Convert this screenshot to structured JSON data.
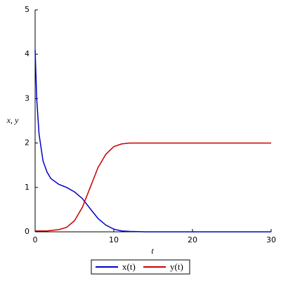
{
  "chart_data": {
    "type": "line",
    "x_label": "t",
    "y_label": "x, y",
    "x": [
      0,
      0.2,
      0.5,
      1,
      1.5,
      2,
      3,
      4,
      5,
      6,
      7,
      8,
      9,
      10,
      11,
      12,
      14,
      20,
      30
    ],
    "series": [
      {
        "name": "x(t)",
        "color": "#0000c8",
        "values": [
          4.1,
          3.0,
          2.2,
          1.6,
          1.35,
          1.2,
          1.07,
          1.0,
          0.9,
          0.75,
          0.52,
          0.3,
          0.15,
          0.06,
          0.02,
          0.01,
          0,
          0,
          0
        ]
      },
      {
        "name": "y(t)",
        "color": "#c80000",
        "values": [
          0.02,
          0.02,
          0.02,
          0.02,
          0.02,
          0.03,
          0.05,
          0.1,
          0.25,
          0.55,
          1.0,
          1.45,
          1.75,
          1.92,
          1.98,
          2.0,
          2.0,
          2.0,
          2.0
        ]
      }
    ],
    "xlim": [
      0,
      30
    ],
    "xticks": [
      0,
      10,
      20,
      30
    ],
    "ylim": [
      0,
      5
    ],
    "yticks": [
      0,
      1,
      2,
      3,
      4,
      5
    ],
    "grid": false,
    "legend": "bottom"
  }
}
